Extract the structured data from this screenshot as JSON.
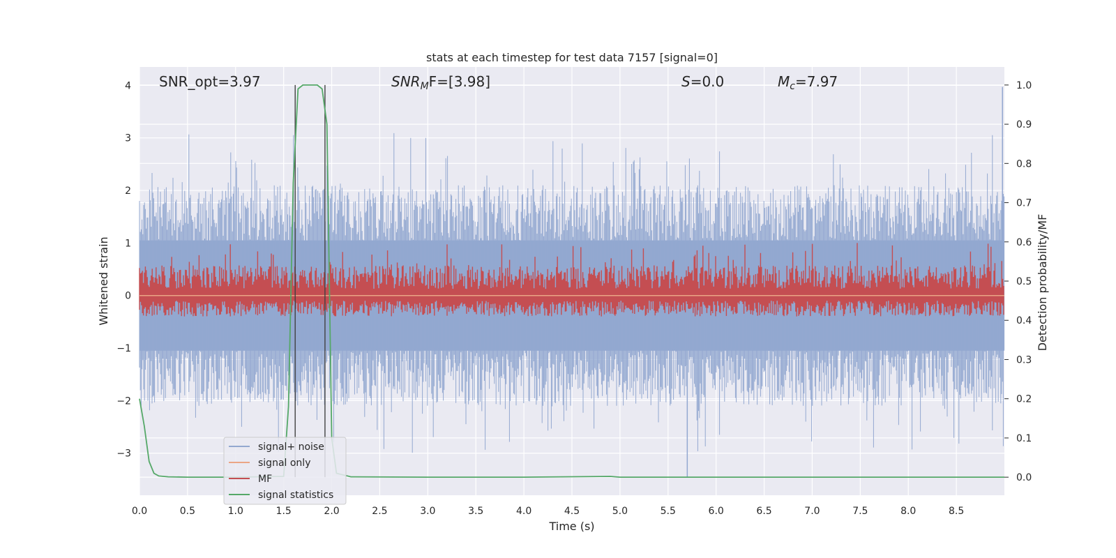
{
  "chart_data": {
    "type": "line",
    "title": "stats at each timestep for test data 7157 [signal=0]",
    "xlabel": "Time (s)",
    "ylabel": "Whitened strain",
    "y2label": "Detection probability/MF",
    "xlim": [
      0,
      9.0
    ],
    "ylim": [
      -3.8,
      4.35
    ],
    "y2lim": [
      -0.046,
      1.046
    ],
    "xticks": [
      "0.0",
      "0.5",
      "1.0",
      "1.5",
      "2.0",
      "2.5",
      "3.0",
      "3.5",
      "4.0",
      "4.5",
      "5.0",
      "5.5",
      "6.0",
      "6.5",
      "7.0",
      "7.5",
      "8.0",
      "8.5"
    ],
    "yticks": [
      "4",
      "3",
      "2",
      "1",
      "0",
      "−1",
      "−2",
      "−3"
    ],
    "y2ticks": [
      "1.0",
      "0.9",
      "0.8",
      "0.7",
      "0.6",
      "0.5",
      "0.4",
      "0.3",
      "0.2",
      "0.1",
      "0.0"
    ],
    "grid": true,
    "legend_position": "lower-left",
    "annotations": {
      "snr_opt": "SNR_opt=3.97",
      "snr_mf_a": "SNR",
      "snr_mf_b": "M",
      "snr_mf_c": "F=[3.98]",
      "s_a": "S",
      "s_b": "=0.0",
      "mc_a": "M",
      "mc_b": "c",
      "mc_c": "=7.97"
    },
    "vlines_x": [
      1.62,
      1.93
    ],
    "series": [
      {
        "name": "signal+ noise",
        "color": "#93a8d0",
        "axis": "left",
        "envelope_upper": 2.1,
        "envelope_lower": -2.1,
        "peak_max": 3.97,
        "peak_min": -3.45
      },
      {
        "name": "signal only",
        "color": "#eba585",
        "axis": "left",
        "values": "constant 0"
      },
      {
        "name": "MF",
        "color": "#c44e52",
        "axis": "right",
        "baseline": 0.46,
        "peak_max": 0.6
      },
      {
        "name": "signal statistics",
        "color": "#55a868",
        "axis": "right",
        "x": [
          0,
          0.05,
          0.1,
          0.15,
          0.2,
          0.3,
          0.5,
          1.0,
          1.5,
          1.55,
          1.6,
          1.65,
          1.7,
          1.85,
          1.9,
          1.95,
          2.0,
          2.05,
          2.2,
          3.0,
          4.0,
          4.9,
          5.0,
          6.0,
          7.0,
          8.0,
          9.0
        ],
        "values": [
          0.2,
          0.13,
          0.04,
          0.01,
          0.003,
          0.001,
          0.0,
          0.0,
          0.002,
          0.18,
          0.75,
          0.99,
          1.0,
          1.0,
          0.99,
          0.9,
          0.1,
          0.01,
          0.001,
          0.0,
          0.0,
          0.002,
          0.0,
          0.0,
          0.0,
          0.0,
          0.0
        ]
      }
    ]
  }
}
